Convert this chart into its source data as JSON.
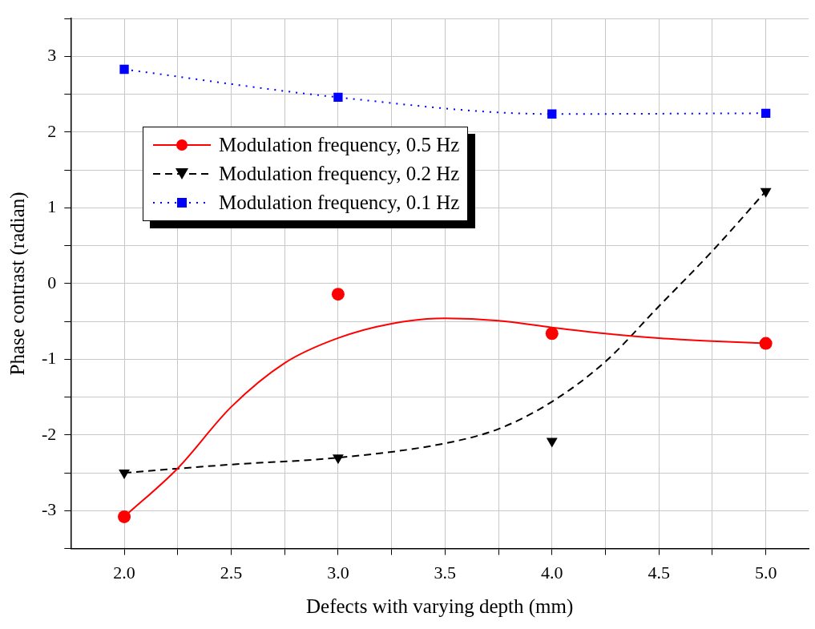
{
  "chart_data": {
    "type": "scatter",
    "xlabel": "Defects with varying depth (mm)",
    "ylabel": "Phase contrast (radian)",
    "xlim": [
      1.75,
      5.2
    ],
    "xticks": [
      {
        "value": 2,
        "label": "2.0"
      },
      {
        "value": 2.25,
        "label": null
      },
      {
        "value": 2.5,
        "label": "2.5"
      },
      {
        "value": 2.75,
        "label": null
      },
      {
        "value": 3,
        "label": "3.0"
      },
      {
        "value": 3.25,
        "label": null
      },
      {
        "value": 3.5,
        "label": "3.5"
      },
      {
        "value": 3.75,
        "label": null
      },
      {
        "value": 4,
        "label": "4.0"
      },
      {
        "value": 4.25,
        "label": null
      },
      {
        "value": 4.5,
        "label": "4.5"
      },
      {
        "value": 4.75,
        "label": null
      },
      {
        "value": 5,
        "label": "5.0"
      }
    ],
    "ylim": [
      -3.5,
      3.5
    ],
    "yticks": [
      {
        "value": -3.5,
        "label": null
      },
      -3,
      {
        "value": -2.5,
        "label": null
      },
      -2,
      {
        "value": -1.5,
        "label": null
      },
      -1,
      {
        "value": -0.5,
        "label": null
      },
      0,
      {
        "value": 0.5,
        "label": null
      },
      1,
      {
        "value": 1.5,
        "label": null
      },
      2,
      {
        "value": 2.5,
        "label": null
      },
      3,
      {
        "value": 3.5,
        "label": null
      }
    ],
    "grid": true,
    "legend": "top left",
    "series": [
      {
        "name": "Modulation frequency, 0.5 Hz",
        "type": "scatter",
        "color": "#ff0000",
        "marker": "circle",
        "line_style": "solid",
        "x": [
          2,
          3,
          4,
          5
        ],
        "values": [
          -3.08,
          -0.14,
          -0.66,
          -0.79
        ]
      },
      {
        "type": "line",
        "color": "#ff0000",
        "marker": "none",
        "line_style": "solid",
        "x": [
          2,
          2.25,
          2.5,
          2.75,
          3,
          3.25,
          3.5,
          3.75,
          4,
          4.25,
          4.5,
          4.75,
          5
        ],
        "values": [
          -3.08,
          -2.44,
          -1.63,
          -1.05,
          -0.72,
          -0.53,
          -0.46,
          -0.49,
          -0.58,
          -0.66,
          -0.72,
          -0.76,
          -0.79
        ]
      },
      {
        "name": "Modulation frequency, 0.2 Hz",
        "type": "scatter",
        "color": "#000000",
        "marker": "triangle",
        "line_style": "dashed",
        "x": [
          2,
          3,
          4,
          5
        ],
        "values": [
          -2.5,
          -2.3,
          -2.08,
          1.22
        ]
      },
      {
        "type": "line",
        "color": "#000000",
        "marker": "none",
        "line_style": "dashed",
        "x": [
          2,
          2.5,
          3,
          3.5,
          3.75,
          4,
          4.25,
          4.5,
          4.75,
          5
        ],
        "values": [
          -2.5,
          -2.39,
          -2.3,
          -2.11,
          -1.92,
          -1.56,
          -1.03,
          -0.3,
          0.43,
          1.22
        ]
      },
      {
        "name": "Modulation frequency, 0.1 Hz",
        "type": "line",
        "color": "#0000ff",
        "marker": "square",
        "line_style": "dotted",
        "x": [
          2,
          3,
          4,
          5
        ],
        "values": [
          2.83,
          2.46,
          2.24,
          2.25
        ]
      }
    ]
  }
}
